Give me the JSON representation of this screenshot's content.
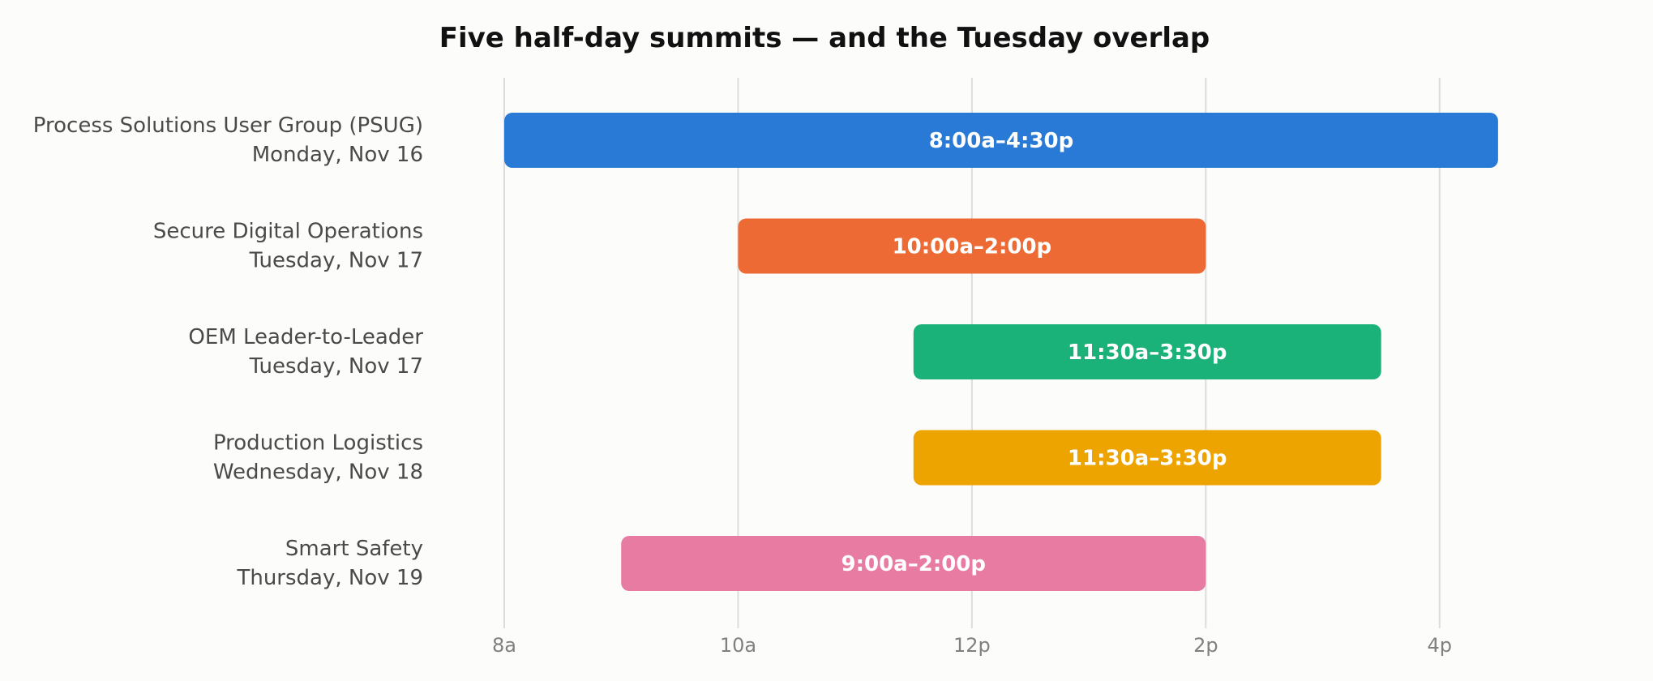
{
  "chart_data": {
    "type": "bar",
    "orientation": "horizontal",
    "title": "Five half-day summits — and the Tuesday overlap",
    "xlabel": "",
    "ylabel": "",
    "xlim": [
      8,
      17
    ],
    "grid": true,
    "x_ticks": [
      {
        "value": 8,
        "label": "8a"
      },
      {
        "value": 10,
        "label": "10a"
      },
      {
        "value": 12,
        "label": "12p"
      },
      {
        "value": 14,
        "label": "2p"
      },
      {
        "value": 16,
        "label": "4p"
      }
    ],
    "series": [
      {
        "line1": "Process Solutions User Group (PSUG)",
        "line2": "Monday, Nov 16",
        "start": 8,
        "end": 16.5,
        "label": "8:00a–4:30p",
        "color": "#2979d6"
      },
      {
        "line1": "Secure Digital Operations",
        "line2": "Tuesday, Nov 17",
        "start": 10,
        "end": 14,
        "label": "10:00a–2:00p",
        "color": "#ed6a35"
      },
      {
        "line1": "OEM Leader-to-Leader",
        "line2": "Tuesday, Nov 17",
        "start": 11.5,
        "end": 15.5,
        "label": "11:30a–3:30p",
        "color": "#1bb27a"
      },
      {
        "line1": "Production Logistics",
        "line2": "Wednesday, Nov 18",
        "start": 11.5,
        "end": 15.5,
        "label": "11:30a–3:30p",
        "color": "#eda300"
      },
      {
        "line1": "Smart Safety",
        "line2": "Thursday, Nov 19",
        "start": 9,
        "end": 14,
        "label": "9:00a–2:00p",
        "color": "#e87ba2"
      }
    ]
  }
}
